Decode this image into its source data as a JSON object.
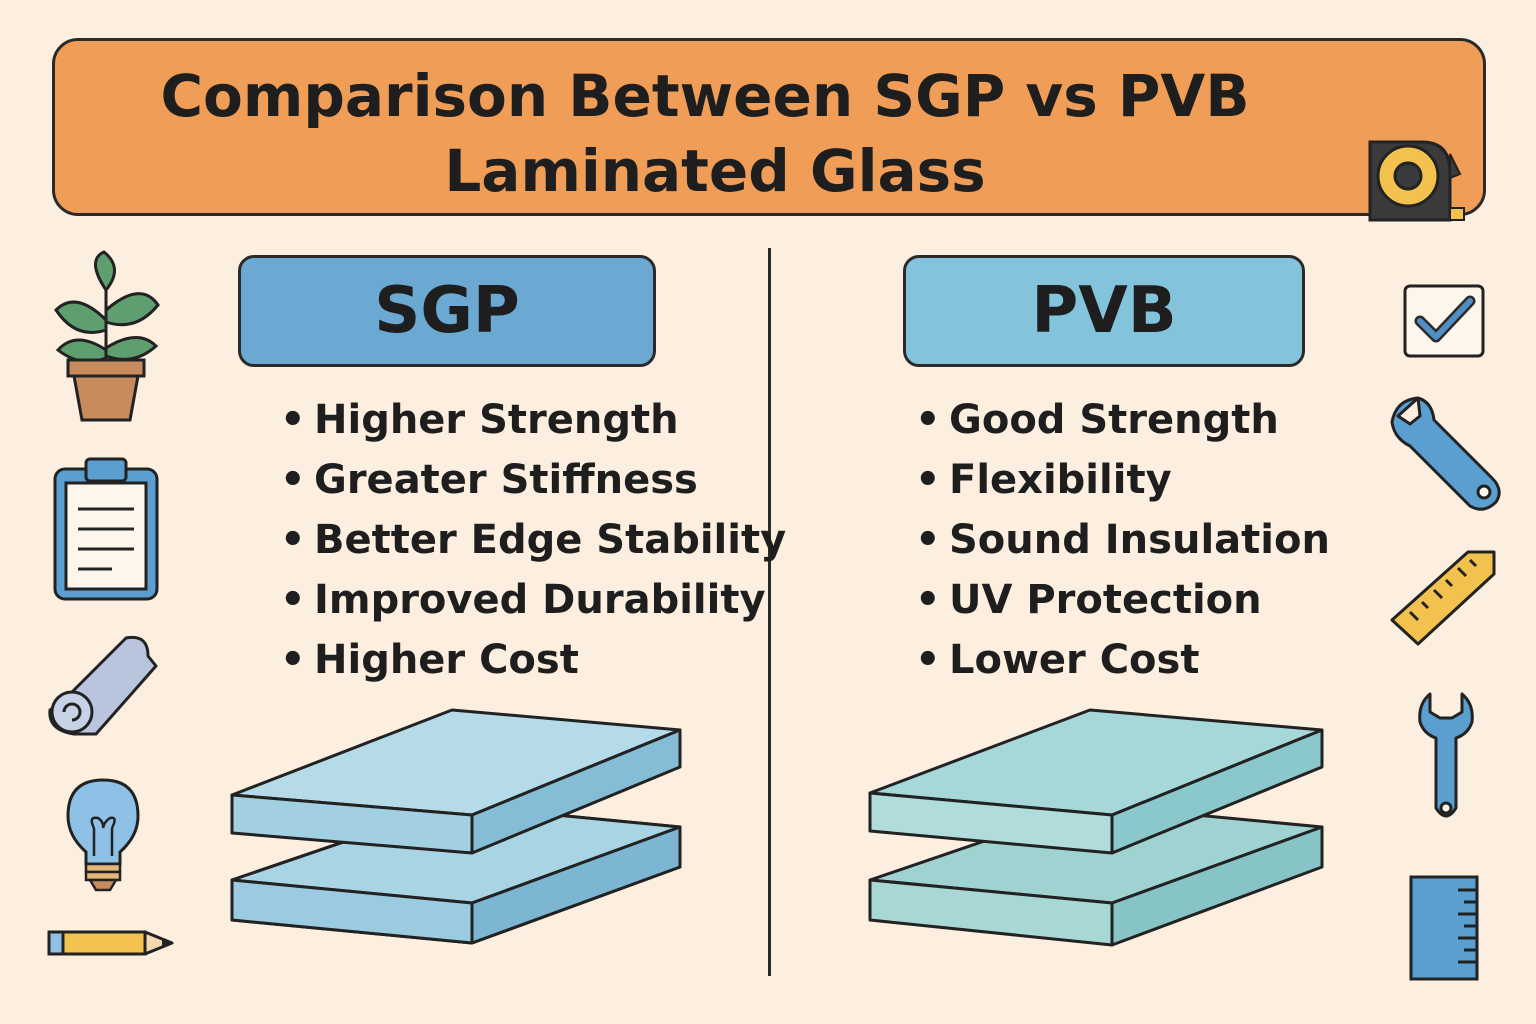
{
  "title": {
    "line1": "Comparison Between SGP vs PVB",
    "line2": "Laminated Glass"
  },
  "sgp": {
    "label": "SGP",
    "features": [
      "Higher Strength",
      "Greater Stiffness",
      "Better Edge Stability",
      "Improved Durability",
      "Higher Cost"
    ]
  },
  "pvb": {
    "label": "PVB",
    "features": [
      "Good Strength",
      "Flexibility",
      "Sound Insulation",
      "UV Protection",
      "Lower Cost"
    ]
  },
  "bullet": "•",
  "icons": {
    "left": [
      "plant-icon",
      "clipboard-icon",
      "rolled-sheet-icon",
      "light-bulb-icon",
      "pencil-icon"
    ],
    "right": [
      "checkbox-icon",
      "wrench-icon",
      "ruler-icon",
      "small-wrench-icon",
      "measuring-ruler-icon"
    ],
    "title": "tape-measure-icon"
  },
  "colors": {
    "background": "#fcefe0",
    "banner": "#ef9d57",
    "sgp_header": "#6ba9d2",
    "pvb_header": "#83c3dc",
    "sgp_glass": "#a9d4e4",
    "pvb_glass": "#a3d6d6",
    "outline": "#2a2a2a"
  }
}
